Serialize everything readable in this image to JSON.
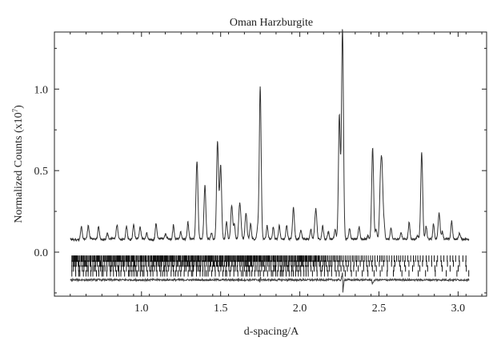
{
  "chart_data": {
    "type": "line",
    "title": "Oman Harzburgite",
    "xlabel": "d-spacing/A",
    "ylabel": "Normalized Counts (x10",
    "ylabel_sup": "7",
    "ylabel_close": ")",
    "xlim": [
      0.45,
      3.18
    ],
    "ylim": [
      -0.27,
      1.35
    ],
    "xticks": [
      "1.0",
      "1.5",
      "2.0",
      "2.5",
      "3.0"
    ],
    "xtick_values": [
      1.0,
      1.5,
      2.0,
      2.5,
      3.0
    ],
    "yticks": [
      "0.0",
      "0.5",
      "1.0"
    ],
    "ytick_values": [
      0.0,
      0.5,
      1.0
    ],
    "grid": false,
    "pattern": {
      "x_start": 0.55,
      "x_end": 3.07,
      "baseline": 0.08,
      "peaks": [
        {
          "d": 1.35,
          "h": 0.44
        },
        {
          "d": 1.4,
          "h": 0.24
        },
        {
          "d": 1.48,
          "h": 0.58
        },
        {
          "d": 1.5,
          "h": 0.45
        },
        {
          "d": 1.57,
          "h": 0.21
        },
        {
          "d": 1.62,
          "h": 0.2
        },
        {
          "d": 1.66,
          "h": 0.16
        },
        {
          "d": 1.75,
          "h": 0.93
        },
        {
          "d": 1.96,
          "h": 0.14
        },
        {
          "d": 2.1,
          "h": 0.16
        },
        {
          "d": 2.25,
          "h": 0.76
        },
        {
          "d": 2.27,
          "h": 1.23
        },
        {
          "d": 2.46,
          "h": 0.56
        },
        {
          "d": 2.51,
          "h": 0.35
        },
        {
          "d": 2.52,
          "h": 0.37
        },
        {
          "d": 2.77,
          "h": 0.53
        },
        {
          "d": 2.88,
          "h": 0.16
        }
      ]
    },
    "reflection_rows": [
      -0.04,
      -0.07,
      -0.1,
      -0.13
    ],
    "difference_offset": -0.17
  }
}
